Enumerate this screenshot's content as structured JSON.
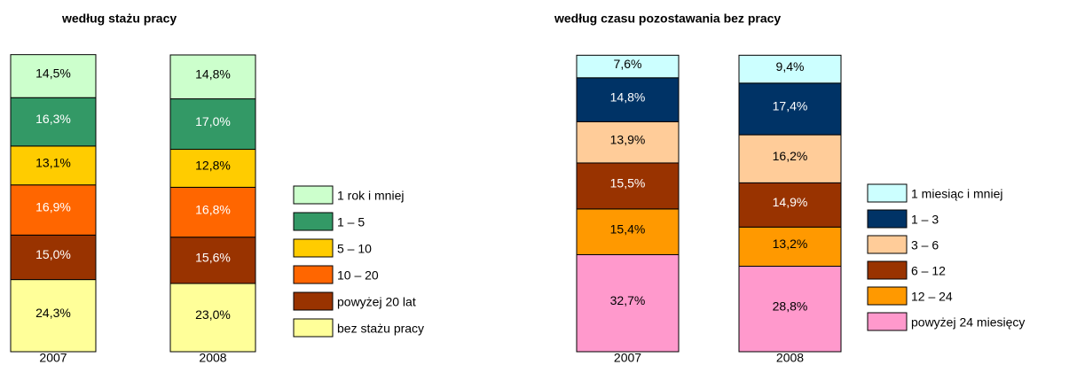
{
  "chart_data": [
    {
      "type": "bar",
      "stacked": true,
      "title": "według stażu pracy",
      "categories": [
        "2007",
        "2008"
      ],
      "ylim": [
        0,
        100
      ],
      "series": [
        {
          "name": "1 rok i mniej",
          "color": "#ccffcc",
          "values": [
            14.5,
            14.8
          ],
          "value_labels": [
            "14,5%",
            "14,8%"
          ]
        },
        {
          "name": "1 – 5",
          "color": "#339966",
          "values": [
            16.3,
            17.0
          ],
          "value_labels": [
            "16,3%",
            "17,0%"
          ]
        },
        {
          "name": "5 – 10",
          "color": "#ffcc00",
          "values": [
            13.1,
            12.8
          ],
          "value_labels": [
            "13,1%",
            "12,8%"
          ]
        },
        {
          "name": "10 – 20",
          "color": "#ff6600",
          "values": [
            16.9,
            16.8
          ],
          "value_labels": [
            "16,9%",
            "16,8%"
          ]
        },
        {
          "name": "powyżej 20 lat",
          "color": "#993300",
          "values": [
            15.0,
            15.6
          ],
          "value_labels": [
            "15,0%",
            "15,6%"
          ]
        },
        {
          "name": "bez stażu pracy",
          "color": "#ffff99",
          "values": [
            24.3,
            23.0
          ],
          "value_labels": [
            "24,3%",
            "23,0%"
          ]
        }
      ]
    },
    {
      "type": "bar",
      "stacked": true,
      "title": "według czasu pozostawania bez pracy",
      "categories": [
        "2007",
        "2008"
      ],
      "ylim": [
        0,
        100
      ],
      "series": [
        {
          "name": "1 miesiąc i mniej",
          "color": "#ccffff",
          "values": [
            7.6,
            9.4
          ],
          "value_labels": [
            "7,6%",
            "9,4%"
          ]
        },
        {
          "name": "1 – 3",
          "color": "#003366",
          "values": [
            14.8,
            17.4
          ],
          "value_labels": [
            "14,8%",
            "17,4%"
          ]
        },
        {
          "name": "3 – 6",
          "color": "#ffcc99",
          "values": [
            13.9,
            16.2
          ],
          "value_labels": [
            "13,9%",
            "16,2%"
          ]
        },
        {
          "name": "6 – 12",
          "color": "#993300",
          "values": [
            15.5,
            14.9
          ],
          "value_labels": [
            "15,5%",
            "14,9%"
          ]
        },
        {
          "name": "12 – 24",
          "color": "#ff9900",
          "values": [
            15.4,
            13.2
          ],
          "value_labels": [
            "15,4%",
            "13,2%"
          ]
        },
        {
          "name": "powyżej 24 miesięcy",
          "color": "#ff99cc",
          "values": [
            32.7,
            28.8
          ],
          "value_labels": [
            "32,7%",
            "28,8%"
          ]
        }
      ]
    }
  ]
}
